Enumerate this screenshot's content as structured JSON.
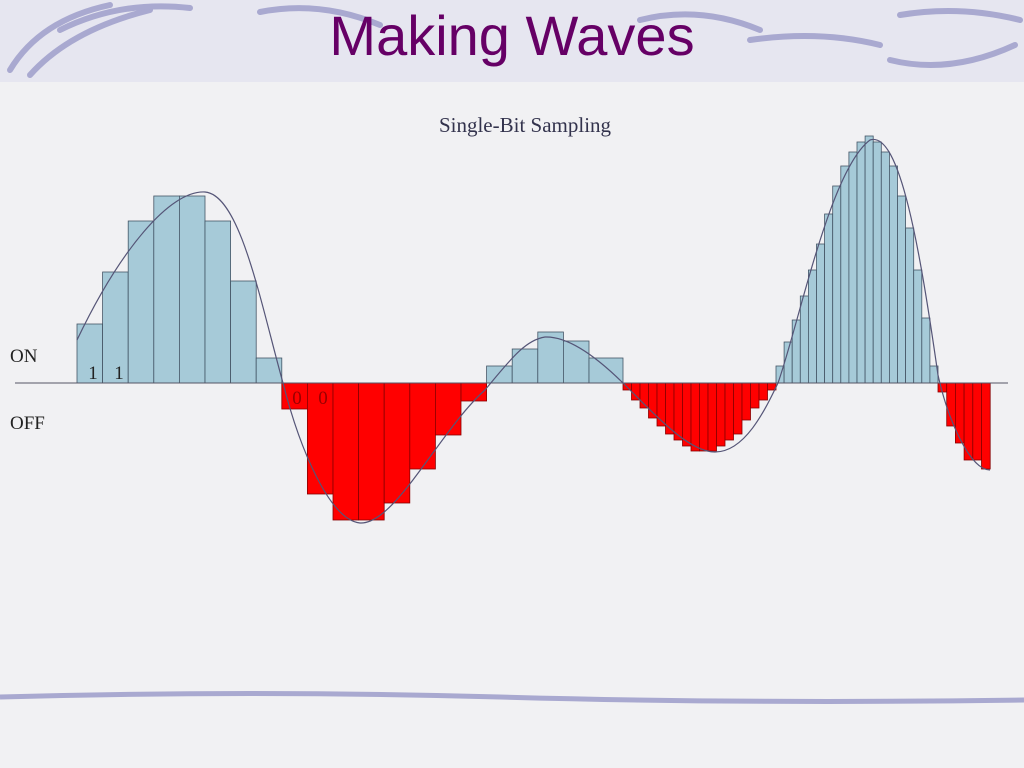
{
  "title": "Making Waves",
  "subtitle": "Single-Bit Sampling",
  "levels": {
    "on": "ON",
    "off": "OFF"
  },
  "bits": [
    "1",
    "1",
    "0",
    "0"
  ]
}
